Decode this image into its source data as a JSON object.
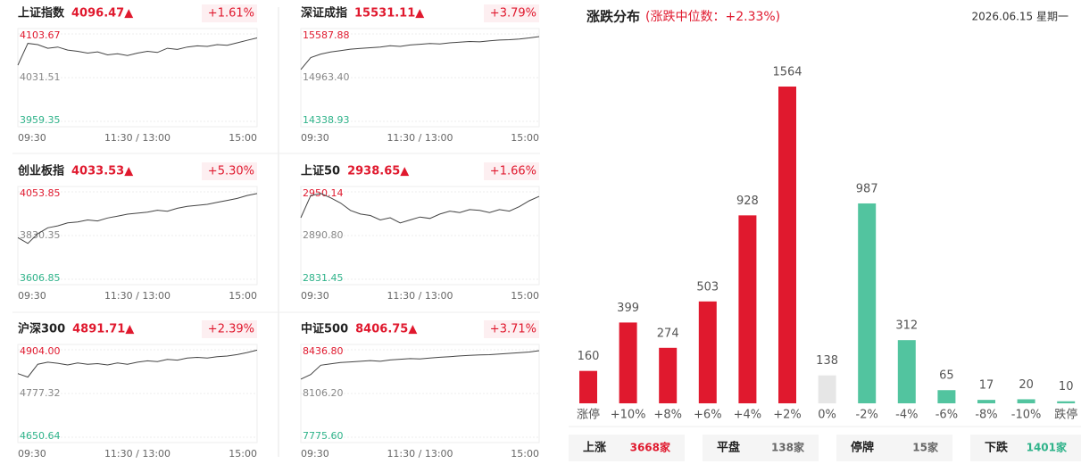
{
  "chart_data": [
    {
      "type": "line",
      "title": "上证指数",
      "price": "4096.47▲",
      "change": "+1.61%",
      "color": "#444444",
      "x": [
        0,
        10,
        20,
        30,
        40,
        50,
        60,
        70,
        80,
        90,
        100,
        110,
        120,
        130,
        140,
        150,
        160,
        170,
        180,
        190,
        200,
        210,
        220,
        230,
        240
      ],
      "values": [
        4052,
        4088,
        4086,
        4080,
        4082,
        4077,
        4075,
        4072,
        4074,
        4069,
        4071,
        4068,
        4072,
        4075,
        4073,
        4080,
        4078,
        4082,
        4084,
        4083,
        4086,
        4085,
        4089,
        4093,
        4097
      ],
      "xlim": [
        0,
        240
      ],
      "xticks": [
        {
          "value": 0,
          "label": "09:30"
        },
        {
          "value": 120,
          "label": "11:30 / 13:00"
        },
        {
          "value": 240,
          "label": "15:00"
        }
      ],
      "ylim": [
        3959.35,
        4103.67
      ],
      "yticks": [
        4103.67,
        4031.51,
        3959.35
      ],
      "grid": true
    },
    {
      "type": "line",
      "title": "深证成指",
      "price": "15531.11▲",
      "change": "+3.79%",
      "color": "#444444",
      "x": [
        0,
        10,
        20,
        30,
        40,
        50,
        60,
        70,
        80,
        90,
        100,
        110,
        120,
        130,
        140,
        150,
        160,
        170,
        180,
        190,
        200,
        210,
        220,
        230,
        240
      ],
      "values": [
        15080,
        15250,
        15300,
        15330,
        15350,
        15370,
        15380,
        15390,
        15400,
        15420,
        15410,
        15430,
        15440,
        15450,
        15445,
        15460,
        15470,
        15480,
        15475,
        15490,
        15500,
        15505,
        15515,
        15530,
        15550
      ],
      "xlim": [
        0,
        240
      ],
      "xticks": [
        {
          "value": 0,
          "label": "09:30"
        },
        {
          "value": 120,
          "label": "11:30 / 13:00"
        },
        {
          "value": 240,
          "label": "15:00"
        }
      ],
      "ylim": [
        14338.93,
        15587.88
      ],
      "yticks": [
        15587.88,
        {
          "value": 14963.4,
          "label": "14963.40"
        },
        14338.93
      ],
      "grid": true
    },
    {
      "type": "line",
      "title": "创业板指",
      "price": "4033.53▲",
      "change": "+5.30%",
      "color": "#444444",
      "x": [
        0,
        10,
        20,
        30,
        40,
        50,
        60,
        70,
        80,
        90,
        100,
        110,
        120,
        130,
        140,
        150,
        160,
        170,
        180,
        190,
        200,
        210,
        220,
        230,
        240
      ],
      "values": [
        3820,
        3790,
        3840,
        3870,
        3880,
        3895,
        3900,
        3910,
        3905,
        3920,
        3930,
        3940,
        3945,
        3950,
        3960,
        3955,
        3970,
        3980,
        3985,
        3990,
        4000,
        4010,
        4020,
        4035,
        4045
      ],
      "xlim": [
        0,
        240
      ],
      "xticks": [
        {
          "value": 0,
          "label": "09:30"
        },
        {
          "value": 120,
          "label": "11:30 / 13:00"
        },
        {
          "value": 240,
          "label": "15:00"
        }
      ],
      "ylim": [
        3606.85,
        4053.85
      ],
      "yticks": [
        4053.85,
        3830.35,
        3606.85
      ],
      "grid": true
    },
    {
      "type": "line",
      "title": "上证50",
      "price": "2938.65▲",
      "change": "+1.66%",
      "color": "#444444",
      "x": [
        0,
        10,
        20,
        30,
        40,
        50,
        60,
        70,
        80,
        90,
        100,
        110,
        120,
        130,
        140,
        150,
        160,
        170,
        180,
        190,
        200,
        210,
        220,
        230,
        240
      ],
      "values": [
        2915,
        2945,
        2948,
        2942,
        2935,
        2925,
        2920,
        2918,
        2912,
        2915,
        2908,
        2912,
        2916,
        2914,
        2920,
        2924,
        2922,
        2926,
        2925,
        2922,
        2926,
        2924,
        2930,
        2938,
        2944
      ],
      "xlim": [
        0,
        240
      ],
      "xticks": [
        {
          "value": 0,
          "label": "09:30"
        },
        {
          "value": 120,
          "label": "11:30 / 13:00"
        },
        {
          "value": 240,
          "label": "15:00"
        }
      ],
      "ylim": [
        2831.45,
        2950.14
      ],
      "yticks": [
        2950.14,
        {
          "value": 2890.8,
          "label": "2890.80"
        },
        2831.45
      ],
      "grid": true
    },
    {
      "type": "line",
      "title": "沪深300",
      "price": "4891.71▲",
      "change": "+2.39%",
      "color": "#444444",
      "x": [
        0,
        10,
        20,
        30,
        40,
        50,
        60,
        70,
        80,
        90,
        100,
        110,
        120,
        130,
        140,
        150,
        160,
        170,
        180,
        190,
        200,
        210,
        220,
        230,
        240
      ],
      "values": [
        4835,
        4825,
        4862,
        4868,
        4865,
        4860,
        4866,
        4862,
        4864,
        4860,
        4866,
        4862,
        4868,
        4872,
        4870,
        4876,
        4874,
        4880,
        4882,
        4880,
        4884,
        4886,
        4890,
        4896,
        4903
      ],
      "xlim": [
        0,
        240
      ],
      "xticks": [
        {
          "value": 0,
          "label": "09:30"
        },
        {
          "value": 120,
          "label": "11:30 / 13:00"
        },
        {
          "value": 240,
          "label": "15:00"
        }
      ],
      "ylim": [
        4650.64,
        4904
      ],
      "yticks": [
        {
          "value": 4904,
          "label": "4904.00"
        },
        4777.32,
        4650.64
      ],
      "grid": true
    },
    {
      "type": "line",
      "title": "中证500",
      "price": "8406.75▲",
      "change": "+3.71%",
      "color": "#444444",
      "x": [
        0,
        10,
        20,
        30,
        40,
        50,
        60,
        70,
        80,
        90,
        100,
        110,
        120,
        130,
        140,
        150,
        160,
        170,
        180,
        190,
        200,
        210,
        220,
        230,
        240
      ],
      "values": [
        8215,
        8250,
        8320,
        8330,
        8340,
        8345,
        8350,
        8355,
        8350,
        8360,
        8365,
        8370,
        8368,
        8375,
        8380,
        8385,
        8390,
        8395,
        8398,
        8400,
        8405,
        8410,
        8415,
        8420,
        8430
      ],
      "xlim": [
        0,
        240
      ],
      "xticks": [
        {
          "value": 0,
          "label": "09:30"
        },
        {
          "value": 120,
          "label": "11:30 / 13:00"
        },
        {
          "value": 240,
          "label": "15:00"
        }
      ],
      "ylim": [
        7775.6,
        8436.8
      ],
      "yticks": [
        {
          "value": 8436.8,
          "label": "8436.80"
        },
        {
          "value": 8106.2,
          "label": "8106.20"
        },
        {
          "value": 7775.6,
          "label": "7775.60"
        }
      ],
      "grid": true
    },
    {
      "type": "bar",
      "title": "涨跌分布",
      "subtitle": "(涨跌中位数：+2.33%)",
      "date": "2026.06.15 星期一",
      "categories": [
        "涨停",
        "+10%",
        "+8%",
        "+6%",
        "+4%",
        "+2%",
        "0%",
        "-2%",
        "-4%",
        "-6%",
        "-8%",
        "-10%",
        "跌停"
      ],
      "values": [
        160,
        399,
        274,
        503,
        928,
        1564,
        138,
        987,
        312,
        65,
        17,
        20,
        10
      ],
      "colors": [
        "#e0192e",
        "#e0192e",
        "#e0192e",
        "#e0192e",
        "#e0192e",
        "#e0192e",
        "#e6e6e6",
        "#52c49f",
        "#52c49f",
        "#52c49f",
        "#52c49f",
        "#52c49f",
        "#52c49f"
      ]
    }
  ],
  "summary": [
    {
      "label": "上涨",
      "count": "3668家",
      "color": "#e0192e"
    },
    {
      "label": "平盘",
      "count": "138家",
      "color": "#666666"
    },
    {
      "label": "停牌",
      "count": "15家",
      "color": "#666666"
    },
    {
      "label": "下跌",
      "count": "1401家",
      "color": "#2fb38a"
    }
  ]
}
